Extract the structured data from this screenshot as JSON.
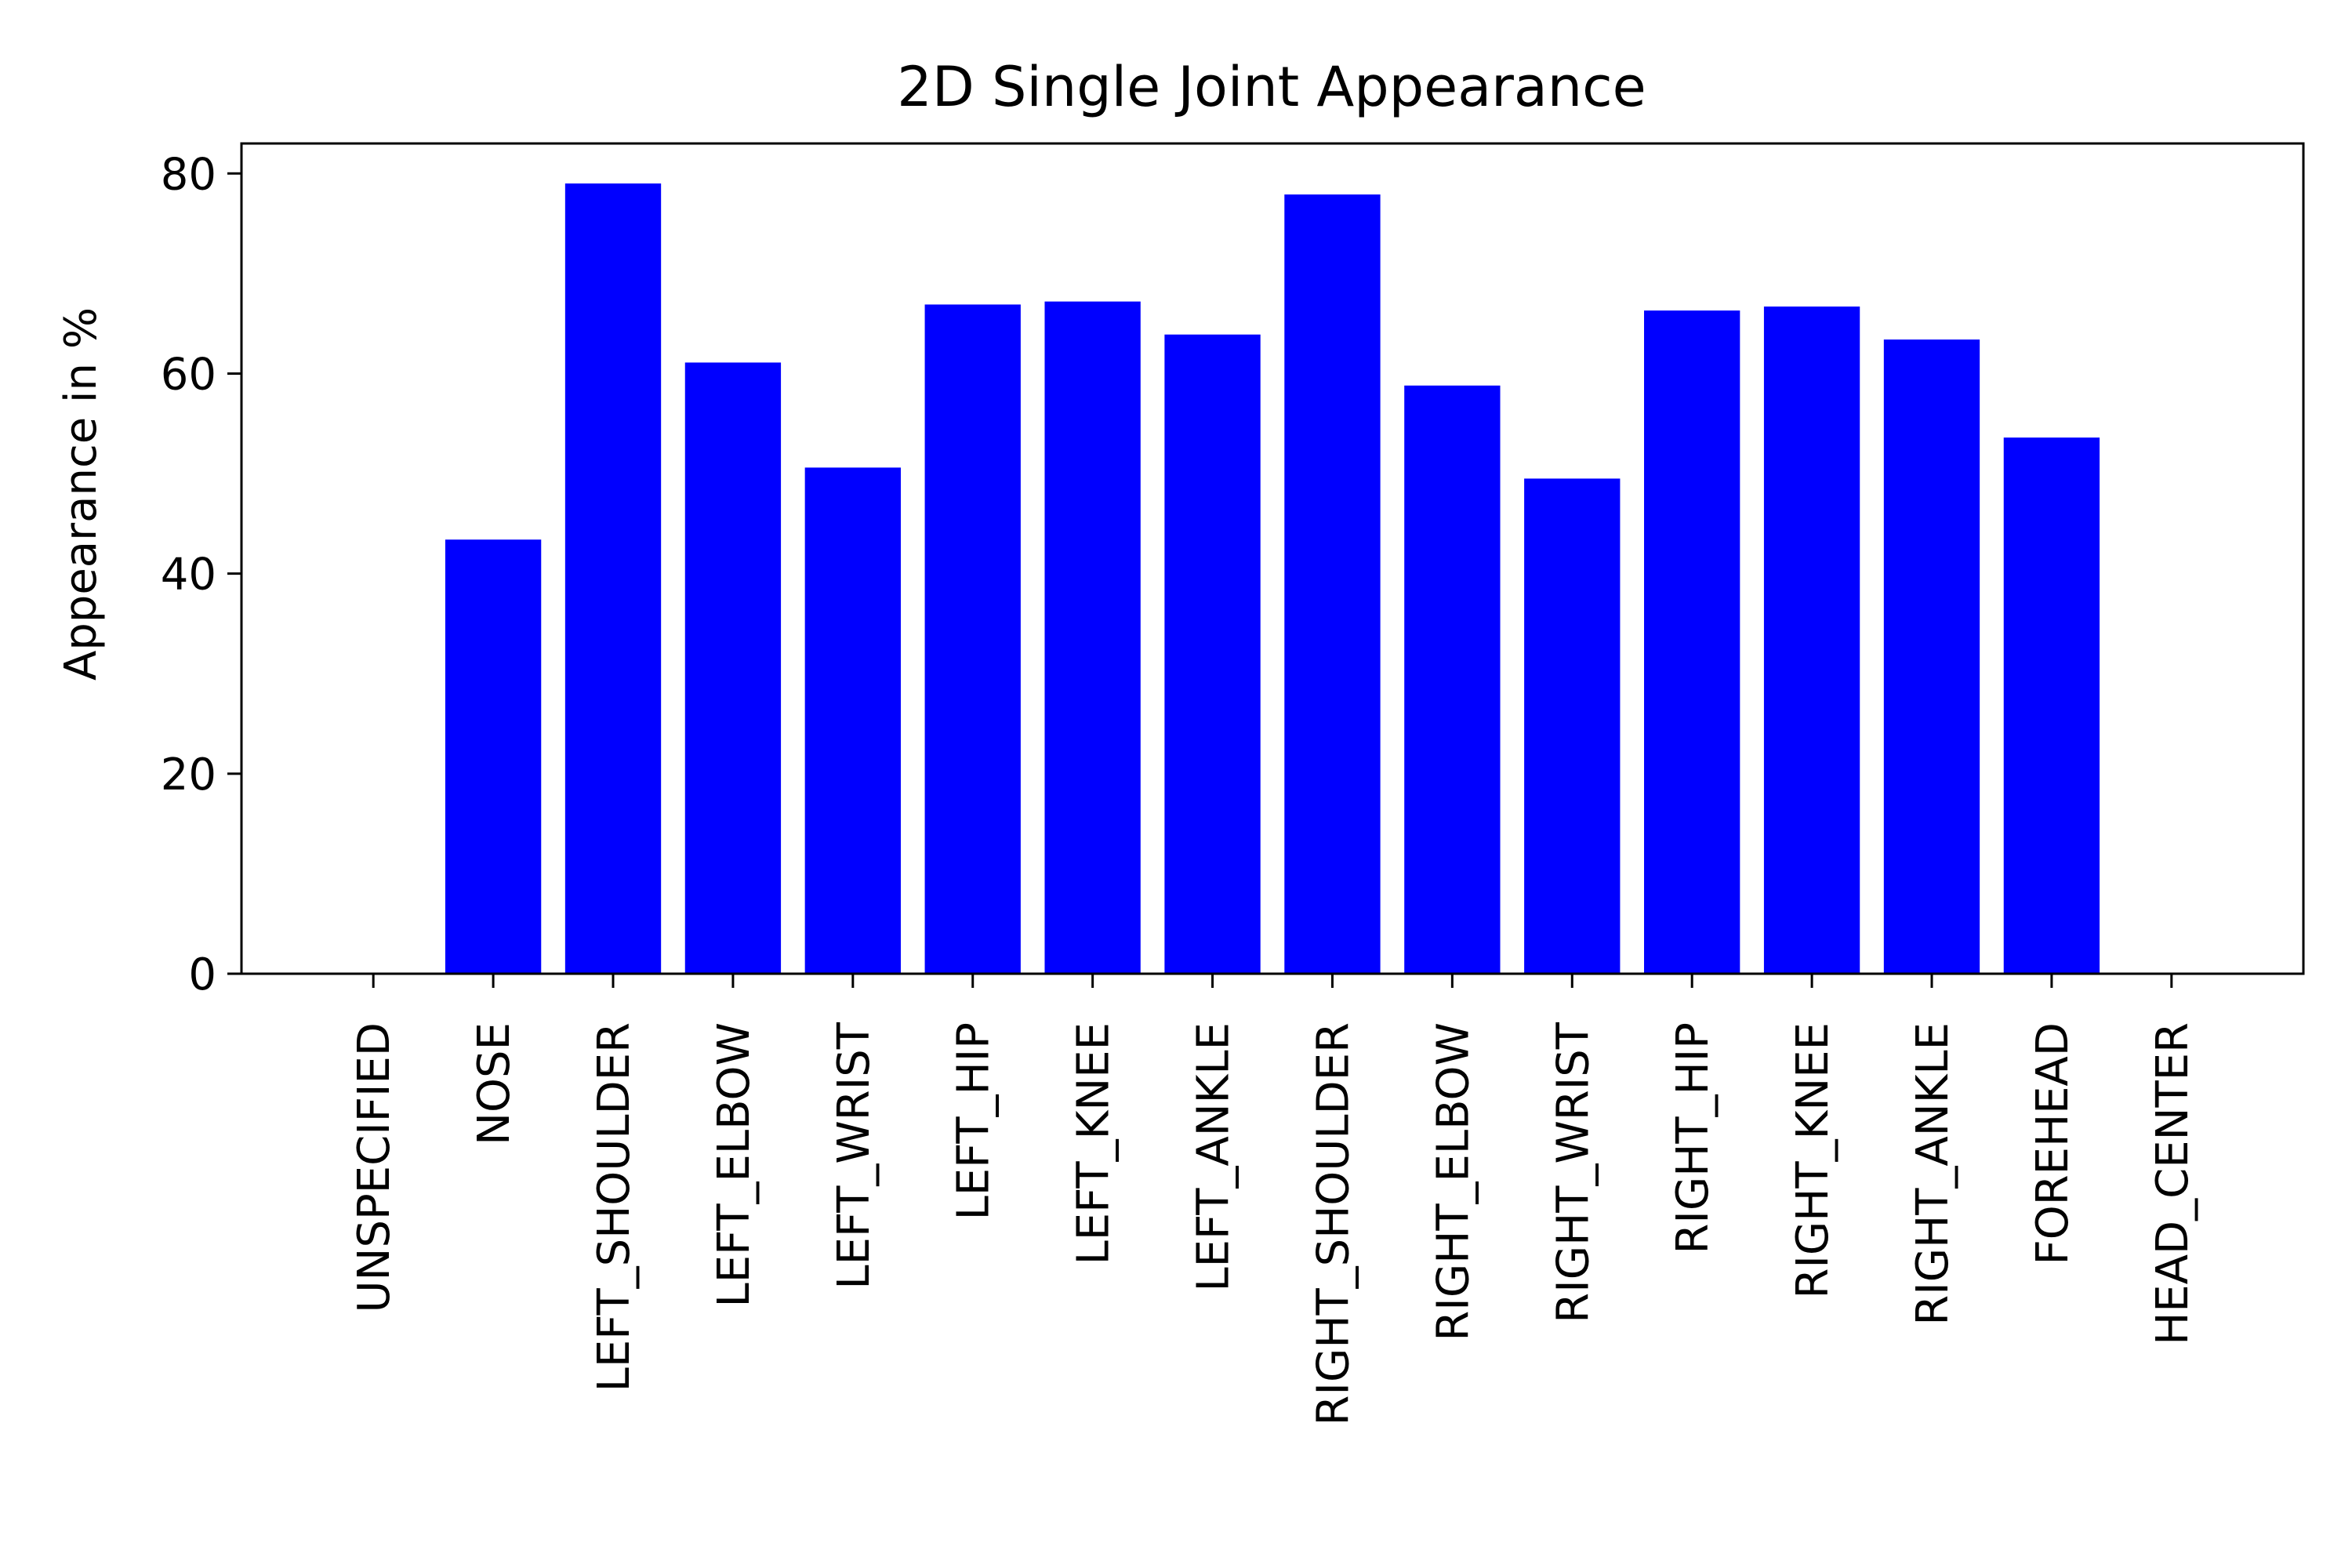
{
  "chart_data": {
    "type": "bar",
    "title": "2D Single Joint Appearance",
    "xlabel": "",
    "ylabel": "Appearance in %",
    "ylim": [
      0,
      83
    ],
    "yticks": [
      0,
      20,
      40,
      60,
      80
    ],
    "grid": false,
    "bar_color": "#0000ff",
    "categories": [
      "UNSPECIFIED",
      "NOSE",
      "LEFT_SHOULDER",
      "LEFT_ELBOW",
      "LEFT_WRIST",
      "LEFT_HIP",
      "LEFT_KNEE",
      "LEFT_ANKLE",
      "RIGHT_SHOULDER",
      "RIGHT_ELBOW",
      "RIGHT_WRIST",
      "RIGHT_HIP",
      "RIGHT_KNEE",
      "RIGHT_ANKLE",
      "FOREHEAD",
      "HEAD_CENTER"
    ],
    "values": [
      0,
      43.4,
      79.0,
      61.1,
      50.6,
      66.9,
      67.2,
      63.9,
      77.9,
      58.8,
      49.5,
      66.3,
      66.7,
      63.4,
      53.6,
      0
    ]
  }
}
